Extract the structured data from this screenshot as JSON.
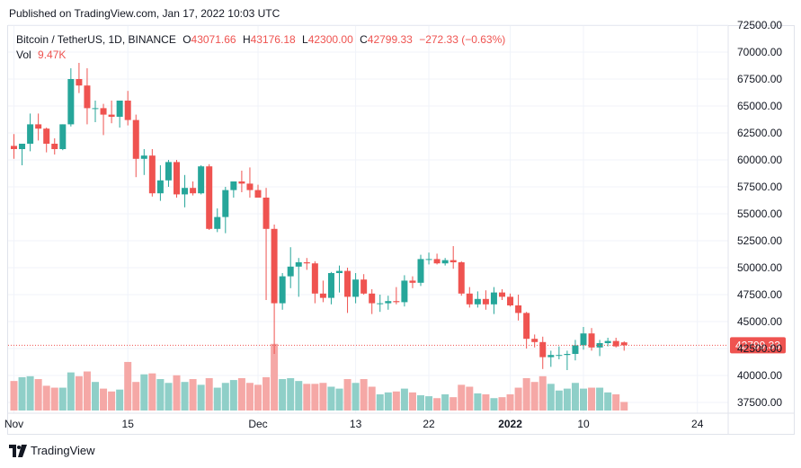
{
  "published": "Published on TradingView.com, Jan 17, 2022 10:03 UTC",
  "footer": {
    "brand": "TradingView"
  },
  "legend": {
    "symbol": "Bitcoin / TetherUS, 1D, BINANCE",
    "o_label": "O",
    "o_value": "43071.66",
    "h_label": "H",
    "h_value": "43176.18",
    "l_label": "L",
    "l_value": "42300.00",
    "c_label": "C",
    "c_value": "42799.33",
    "change": "−272.33 (−0.63%)",
    "vol_label": "Vol",
    "vol_value": "9.47K"
  },
  "colors": {
    "up": "#26a69a",
    "down": "#ef5350",
    "up_vol": "#8fcfc8",
    "down_vol": "#f5a8a6",
    "grid": "#f0f3fa",
    "text": "#131722"
  },
  "chart_data": {
    "type": "candlestick",
    "title": "Bitcoin / TetherUS, 1D, BINANCE",
    "price_axis": {
      "min": 37500,
      "max": 72500,
      "ticks": [
        37500,
        40000,
        42500,
        45000,
        47500,
        50000,
        52500,
        55000,
        57500,
        60000,
        62500,
        65000,
        67500,
        70000,
        72500
      ],
      "tick_labels": [
        "37500.00",
        "40000.00",
        "42500.00",
        "45000.00",
        "47500.00",
        "50000.00",
        "52500.00",
        "55000.00",
        "57500.00",
        "60000.00",
        "62500.00",
        "65000.00",
        "67500.00",
        "70000.00",
        "72500.00"
      ]
    },
    "time_axis": {
      "start": "2021-11-01",
      "labels": [
        {
          "date": "2021-11-01",
          "text": "Nov"
        },
        {
          "date": "2021-11-15",
          "text": "15"
        },
        {
          "date": "2021-12-01",
          "text": "Dec"
        },
        {
          "date": "2021-12-13",
          "text": "13"
        },
        {
          "date": "2021-12-22",
          "text": "22"
        },
        {
          "date": "2022-01-01",
          "text": "2022"
        },
        {
          "date": "2022-01-10",
          "text": "10"
        },
        {
          "date": "2022-01-24",
          "text": "24"
        }
      ]
    },
    "last_price": {
      "value": 42799.33,
      "label": "42799.33"
    },
    "candles": [
      [
        61300,
        62400,
        60100,
        61000,
        31
      ],
      [
        61000,
        61500,
        59500,
        61500,
        35
      ],
      [
        61500,
        64300,
        60800,
        63300,
        36
      ],
      [
        63300,
        64300,
        61800,
        62900,
        33
      ],
      [
        62900,
        63000,
        60700,
        61500,
        26
      ],
      [
        61500,
        62000,
        60500,
        61000,
        24
      ],
      [
        61000,
        63300,
        60900,
        63300,
        24
      ],
      [
        63300,
        68500,
        63100,
        67500,
        40
      ],
      [
        67500,
        69000,
        66200,
        66900,
        36
      ],
      [
        66900,
        68500,
        63300,
        64800,
        41
      ],
      [
        64800,
        65500,
        63500,
        64800,
        30
      ],
      [
        64800,
        65200,
        62300,
        64200,
        23
      ],
      [
        64200,
        65500,
        63400,
        64000,
        20
      ],
      [
        64000,
        65500,
        63000,
        65500,
        22
      ],
      [
        65500,
        66400,
        63200,
        63700,
        51
      ],
      [
        63700,
        64200,
        58400,
        60100,
        30
      ],
      [
        60100,
        61000,
        58600,
        60400,
        38
      ],
      [
        60400,
        61000,
        56600,
        56900,
        39
      ],
      [
        56900,
        59500,
        56200,
        58100,
        33
      ],
      [
        58100,
        60000,
        57500,
        59800,
        29
      ],
      [
        59800,
        60000,
        56500,
        56800,
        37
      ],
      [
        56800,
        58600,
        55600,
        57400,
        30
      ],
      [
        57400,
        58000,
        56700,
        56900,
        33
      ],
      [
        56900,
        59500,
        56800,
        59400,
        27
      ],
      [
        59400,
        59600,
        53500,
        53600,
        34
      ],
      [
        53600,
        55500,
        53300,
        54700,
        24
      ],
      [
        54700,
        57500,
        53200,
        57200,
        29
      ],
      [
        57200,
        58000,
        56500,
        58000,
        32
      ],
      [
        58000,
        59000,
        57000,
        57800,
        34
      ],
      [
        57800,
        59300,
        56500,
        57200,
        29
      ],
      [
        57200,
        57700,
        56600,
        56500,
        27
      ],
      [
        56500,
        57400,
        47000,
        53600,
        35
      ],
      [
        53600,
        54000,
        42000,
        46700,
        70
      ],
      [
        46700,
        49500,
        46100,
        49200,
        33
      ],
      [
        49200,
        51900,
        48100,
        50100,
        34
      ],
      [
        50100,
        50900,
        47300,
        50500,
        31
      ],
      [
        50500,
        50900,
        49800,
        50400,
        28
      ],
      [
        50400,
        50600,
        46700,
        47600,
        28
      ],
      [
        47600,
        48800,
        46800,
        47200,
        29
      ],
      [
        47200,
        49600,
        46600,
        49500,
        25
      ],
      [
        49500,
        50200,
        47700,
        49700,
        23
      ],
      [
        49700,
        50000,
        45800,
        47300,
        33
      ],
      [
        47300,
        49500,
        46700,
        48900,
        29
      ],
      [
        48900,
        49400,
        47500,
        47600,
        33
      ],
      [
        47600,
        48000,
        45700,
        46700,
        25
      ],
      [
        46700,
        47500,
        45900,
        46700,
        17
      ],
      [
        46700,
        47400,
        46100,
        46900,
        19
      ],
      [
        46900,
        48200,
        46600,
        46800,
        20
      ],
      [
        46800,
        49300,
        46400,
        48800,
        23
      ],
      [
        48800,
        49200,
        48100,
        48600,
        19
      ],
      [
        48600,
        51200,
        48300,
        50800,
        16
      ],
      [
        50800,
        51400,
        50300,
        50800,
        15
      ],
      [
        50800,
        51300,
        50300,
        50400,
        13
      ],
      [
        50400,
        50900,
        50200,
        50700,
        17
      ],
      [
        50700,
        52000,
        49900,
        50500,
        14
      ],
      [
        50500,
        50600,
        47400,
        47600,
        27
      ],
      [
        47600,
        48200,
        46300,
        46600,
        25
      ],
      [
        46600,
        47800,
        46300,
        47100,
        18
      ],
      [
        47100,
        47900,
        46100,
        46600,
        17
      ],
      [
        46600,
        48200,
        45700,
        47700,
        13
      ],
      [
        47700,
        48000,
        47000,
        47300,
        14
      ],
      [
        47300,
        47600,
        46400,
        46500,
        17
      ],
      [
        46500,
        47500,
        45100,
        45800,
        24
      ],
      [
        45800,
        45900,
        42500,
        43400,
        34
      ],
      [
        43400,
        43800,
        42600,
        43100,
        30
      ],
      [
        43100,
        43600,
        40600,
        41700,
        36
      ],
      [
        41700,
        42300,
        40800,
        41900,
        28
      ],
      [
        41900,
        42700,
        41500,
        41900,
        21
      ],
      [
        41900,
        42300,
        40500,
        42000,
        23
      ],
      [
        42000,
        43300,
        41400,
        42800,
        29
      ],
      [
        42800,
        44500,
        42400,
        43900,
        23
      ],
      [
        43900,
        44400,
        42300,
        42600,
        24
      ],
      [
        42600,
        43300,
        41800,
        43000,
        24
      ],
      [
        43000,
        43500,
        42700,
        43200,
        19
      ],
      [
        43200,
        43500,
        42600,
        42700,
        17
      ],
      [
        43071.66,
        43176.18,
        42300.0,
        42799.33,
        9
      ]
    ]
  }
}
